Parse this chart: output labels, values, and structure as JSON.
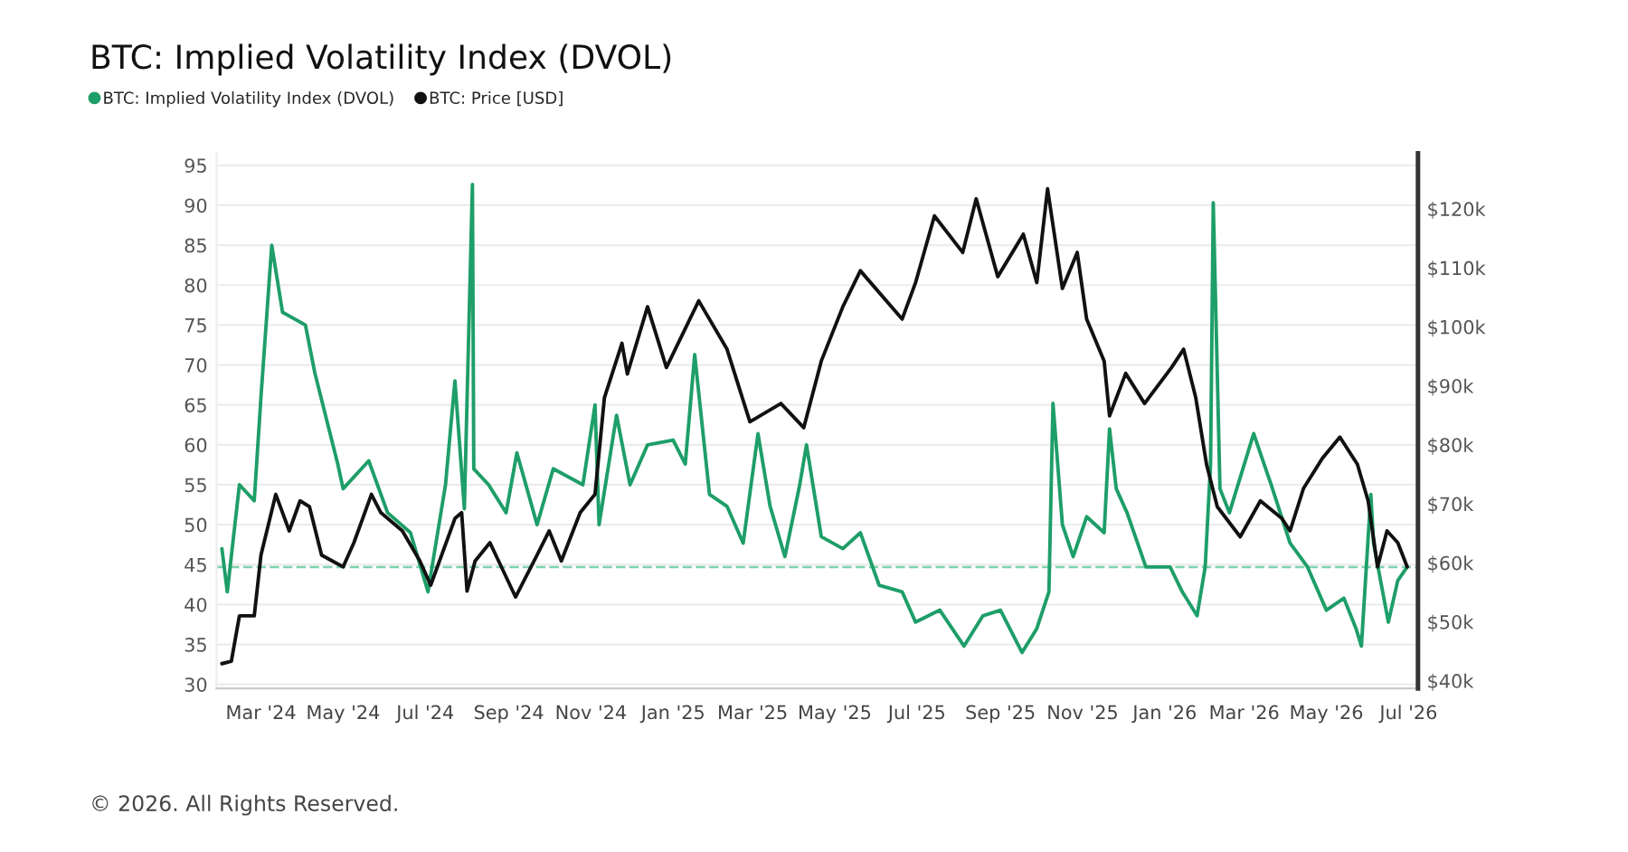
{
  "chart_data": {
    "type": "line",
    "title": "BTC: Implied Volatility Index (DVOL)",
    "xlim": [
      "2024-01-28",
      "2026-07-08"
    ],
    "xticks": [
      {
        "value": "2024-03-01",
        "label": "Mar '24"
      },
      {
        "value": "2024-05-01",
        "label": "May '24"
      },
      {
        "value": "2024-07-01",
        "label": "Jul '24"
      },
      {
        "value": "2024-09-01",
        "label": "Sep '24"
      },
      {
        "value": "2024-11-01",
        "label": "Nov '24"
      },
      {
        "value": "2025-01-01",
        "label": "Jan '25"
      },
      {
        "value": "2025-03-01",
        "label": "Mar '25"
      },
      {
        "value": "2025-05-01",
        "label": "May '25"
      },
      {
        "value": "2025-07-01",
        "label": "Jul '25"
      },
      {
        "value": "2025-09-01",
        "label": "Sep '25"
      },
      {
        "value": "2025-11-01",
        "label": "Nov '25"
      },
      {
        "value": "2026-01-01",
        "label": "Jan '26"
      },
      {
        "value": "2026-03-01",
        "label": "Mar '26"
      },
      {
        "value": "2026-05-01",
        "label": "May '26"
      },
      {
        "value": "2026-07-01",
        "label": "Jul '26"
      }
    ],
    "ylim": [
      29.5,
      96.5
    ],
    "yticks": [
      30,
      35,
      40,
      45,
      50,
      55,
      60,
      65,
      70,
      75,
      80,
      85,
      90,
      95
    ],
    "y2lim": [
      38.7,
      129.4
    ],
    "y2ticks": [
      {
        "value": 40,
        "label": "$40k"
      },
      {
        "value": 50,
        "label": "$50k"
      },
      {
        "value": 60,
        "label": "$60k"
      },
      {
        "value": 70,
        "label": "$70k"
      },
      {
        "value": 80,
        "label": "$80k"
      },
      {
        "value": 90,
        "label": "$90k"
      },
      {
        "value": 100,
        "label": "$100k"
      },
      {
        "value": 110,
        "label": "$110k"
      },
      {
        "value": 120,
        "label": "$120k"
      }
    ],
    "grid": "y",
    "legend": "top left",
    "marker": "none",
    "line_style": "solid",
    "ref_lines": [
      {
        "axis": "y",
        "value": 44.7,
        "color": "#7fd3ae",
        "line_style": "dashed"
      }
    ],
    "annotations": [
      "© 2026. All Rights Reserved."
    ],
    "series": [
      {
        "name": "BTC: Implied Volatility Index (DVOL)",
        "color": "#1e9e68",
        "x": [
          "2024-02-01",
          "2024-02-05",
          "2024-02-14",
          "2024-02-25",
          "2024-03-01",
          "2024-03-09",
          "2024-03-17",
          "2024-04-03",
          "2024-04-10",
          "2024-04-27",
          "2024-05-01",
          "2024-05-20",
          "2024-06-03",
          "2024-06-20",
          "2024-07-03",
          "2024-07-16",
          "2024-07-23",
          "2024-07-30",
          "2024-08-05",
          "2024-08-06",
          "2024-08-17",
          "2024-08-30",
          "2024-09-07",
          "2024-09-22",
          "2024-10-04",
          "2024-10-26",
          "2024-11-04",
          "2024-11-07",
          "2024-11-20",
          "2024-11-30",
          "2024-12-13",
          "2025-01-01",
          "2025-01-10",
          "2025-01-17",
          "2025-01-28",
          "2025-02-10",
          "2025-02-22",
          "2025-03-05",
          "2025-03-14",
          "2025-03-25",
          "2025-04-05",
          "2025-04-10",
          "2025-04-21",
          "2025-05-07",
          "2025-05-20",
          "2025-06-03",
          "2025-06-20",
          "2025-06-30",
          "2025-07-18",
          "2025-08-05",
          "2025-08-19",
          "2025-09-01",
          "2025-09-17",
          "2025-09-28",
          "2025-10-07",
          "2025-10-10",
          "2025-10-17",
          "2025-10-25",
          "2025-11-04",
          "2025-11-17",
          "2025-11-21",
          "2025-11-26",
          "2025-12-04",
          "2025-12-18",
          "2026-01-05",
          "2026-01-14",
          "2026-01-25",
          "2026-01-31",
          "2026-02-04",
          "2026-02-06",
          "2026-02-11",
          "2026-02-18",
          "2026-03-08",
          "2026-03-21",
          "2026-04-04",
          "2026-04-17",
          "2026-05-01",
          "2026-05-14",
          "2026-05-23",
          "2026-05-27",
          "2026-06-03",
          "2026-06-05",
          "2026-06-16",
          "2026-06-23",
          "2026-06-30"
        ],
        "values": [
          47,
          41.6,
          55,
          53,
          66,
          85,
          76.6,
          75,
          69,
          57.6,
          54.5,
          58,
          51.5,
          49,
          41.6,
          55,
          68,
          52,
          92.6,
          57,
          55,
          51.5,
          59,
          50,
          57,
          55,
          65,
          50,
          63.7,
          55,
          60,
          60.6,
          57.6,
          71.3,
          53.8,
          52.3,
          47.7,
          61.4,
          52.3,
          46,
          55,
          60,
          48.5,
          47,
          49,
          42.4,
          41.6,
          37.8,
          39.3,
          34.8,
          38.6,
          39.3,
          34,
          37,
          41.6,
          65.2,
          50,
          46,
          51,
          49,
          62,
          54.5,
          51.5,
          44.7,
          44.7,
          41.6,
          38.6,
          44.7,
          57.6,
          90.3,
          54.5,
          51.5,
          61.4,
          55,
          47.7,
          44.7,
          39.3,
          40.8,
          37,
          34.8,
          53.8,
          47.7,
          37.8,
          43,
          44.7
        ]
      },
      {
        "name": "BTC: Price [USD]",
        "color": "#111111",
        "axis": "y2",
        "x": [
          "2024-02-01",
          "2024-02-08",
          "2024-02-14",
          "2024-02-25",
          "2024-03-01",
          "2024-03-12",
          "2024-03-22",
          "2024-03-30",
          "2024-04-06",
          "2024-04-15",
          "2024-05-01",
          "2024-05-09",
          "2024-05-22",
          "2024-05-29",
          "2024-06-14",
          "2024-06-27",
          "2024-07-05",
          "2024-07-23",
          "2024-07-28",
          "2024-08-01",
          "2024-08-07",
          "2024-08-18",
          "2024-09-06",
          "2024-09-22",
          "2024-10-01",
          "2024-10-10",
          "2024-10-24",
          "2024-11-04",
          "2024-11-11",
          "2024-11-24",
          "2024-11-28",
          "2024-12-13",
          "2024-12-27",
          "2025-01-20",
          "2025-02-10",
          "2025-02-27",
          "2025-03-22",
          "2025-04-08",
          "2025-04-21",
          "2025-05-07",
          "2025-05-20",
          "2025-06-20",
          "2025-06-30",
          "2025-07-14",
          "2025-08-04",
          "2025-08-14",
          "2025-08-30",
          "2025-09-18",
          "2025-09-28",
          "2025-10-06",
          "2025-10-17",
          "2025-10-28",
          "2025-11-04",
          "2025-11-17",
          "2025-11-21",
          "2025-12-03",
          "2025-12-17",
          "2026-01-06",
          "2026-01-15",
          "2026-01-24",
          "2026-02-01",
          "2026-02-09",
          "2026-02-26",
          "2026-03-13",
          "2026-03-29",
          "2026-04-04",
          "2026-04-14",
          "2026-04-28",
          "2026-05-11",
          "2026-05-24",
          "2026-06-01",
          "2026-06-08",
          "2026-06-15",
          "2026-06-23",
          "2026-06-30"
        ],
        "values": [
          42.9,
          43.3,
          51,
          51,
          61.3,
          71.6,
          65.4,
          70.5,
          69.5,
          61.3,
          59.3,
          63.4,
          71.6,
          68.5,
          65.4,
          60.3,
          56.2,
          67.5,
          68.5,
          55.2,
          60.3,
          63.4,
          54.2,
          61.3,
          65.4,
          60.3,
          68.5,
          71.6,
          88,
          97.2,
          92,
          103.4,
          93.1,
          104.4,
          96.2,
          83.9,
          87,
          82.9,
          94.2,
          103.4,
          109.5,
          101.3,
          107.5,
          118.8,
          112.6,
          121.7,
          108.5,
          115.7,
          107.5,
          123.4,
          106.5,
          112.6,
          101.3,
          94.2,
          84.9,
          92.1,
          87,
          93.1,
          96.2,
          88,
          76.7,
          69.5,
          64.4,
          70.5,
          67.5,
          65.4,
          72.6,
          77.7,
          81.3,
          76.7,
          70.5,
          59.3,
          65.4,
          63.4,
          59.3
        ]
      }
    ]
  }
}
